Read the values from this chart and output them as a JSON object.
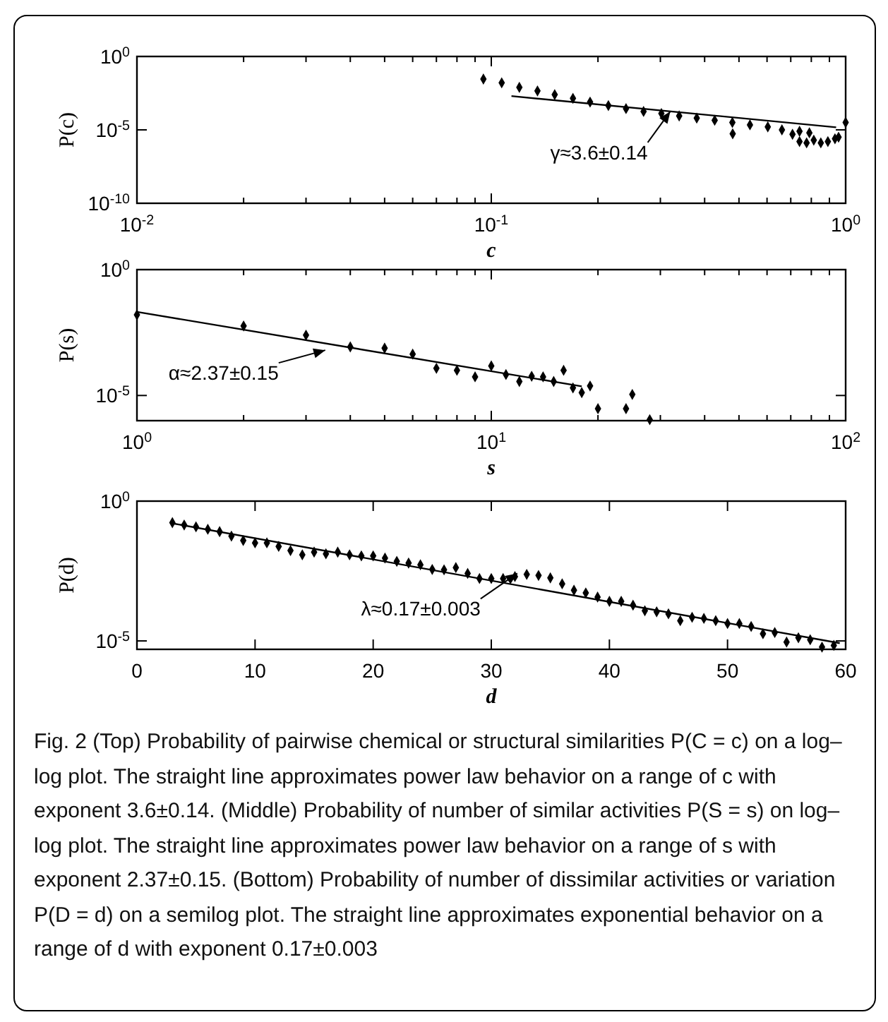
{
  "chart_data": [
    {
      "type": "scatter",
      "xlabel": "c",
      "ylabel": "P(c)",
      "log": "xy",
      "xlim": [
        0.01,
        1
      ],
      "ylim": [
        1e-10,
        1
      ],
      "xticks": [
        {
          "value": 0.01,
          "label": "10$^{-2}$"
        },
        {
          "value": 0.02,
          "label": null
        },
        {
          "value": 0.03,
          "label": null
        },
        {
          "value": 0.04,
          "label": null
        },
        {
          "value": 0.05,
          "label": null
        },
        {
          "value": 0.06,
          "label": null
        },
        {
          "value": 0.07,
          "label": null
        },
        {
          "value": 0.08,
          "label": null
        },
        {
          "value": 0.09,
          "label": null
        },
        {
          "value": 0.1,
          "label": "10$^{-1}$"
        },
        {
          "value": 0.2,
          "label": null
        },
        {
          "value": 0.3,
          "label": null
        },
        {
          "value": 0.4,
          "label": null
        },
        {
          "value": 0.5,
          "label": null
        },
        {
          "value": 0.6,
          "label": null
        },
        {
          "value": 0.7,
          "label": null
        },
        {
          "value": 0.8,
          "label": null
        },
        {
          "value": 0.9,
          "label": null
        },
        {
          "value": 1,
          "label": "10$^{0}$"
        }
      ],
      "yticks": [
        {
          "value": 1e-10,
          "label": "10$^{-10}$"
        },
        {
          "value": 1e-05,
          "label": "10$^{-5}$"
        },
        {
          "value": 1,
          "label": "10$^{0}$"
        }
      ],
      "series": [
        {
          "marker": "diamond",
          "color": "#000000",
          "x": [
            0.095,
            0.107,
            0.12,
            0.135,
            0.151,
            0.17,
            0.19,
            0.214,
            0.24,
            0.269,
            0.302,
            0.339,
            0.38,
            0.427,
            0.479,
            0.537,
            0.603,
            0.661,
            0.708,
            0.741,
            0.776,
            0.813,
            0.851,
            0.891,
            0.933,
            0.955,
            1.0,
            0.741,
            0.79,
            0.48
          ],
          "values": [
            0.029,
            0.016,
            0.0079,
            0.0045,
            0.0025,
            0.0014,
            0.00079,
            0.00045,
            0.00028,
            0.00018,
            0.00013,
            8.9e-05,
            6.3e-05,
            4.5e-05,
            3.2e-05,
            2.2e-05,
            1.6e-05,
            1e-05,
            5e-06,
            1.6e-06,
            1.3e-06,
            2e-06,
            1.3e-06,
            1.6e-06,
            2.5e-06,
            3.2e-06,
            3.2e-05,
            8e-06,
            6.3e-06,
            5.4e-06
          ]
        },
        {
          "type": "line",
          "color": "#000000",
          "x": [
            0.114,
            0.94
          ],
          "values": [
            0.002,
            1.5e-05
          ]
        }
      ],
      "annotations": [
        {
          "text": "γ≈3.6±0.14",
          "x": 0.32,
          "y": 0.00018
        }
      ]
    },
    {
      "type": "scatter",
      "xlabel": "s",
      "ylabel": "P(s)",
      "log": "xy",
      "xlim": [
        1,
        100
      ],
      "ylim": [
        1e-06,
        1
      ],
      "xticks": [
        {
          "value": 1,
          "label": "10$^{0}$"
        },
        {
          "value": 2,
          "label": null
        },
        {
          "value": 3,
          "label": null
        },
        {
          "value": 4,
          "label": null
        },
        {
          "value": 5,
          "label": null
        },
        {
          "value": 6,
          "label": null
        },
        {
          "value": 7,
          "label": null
        },
        {
          "value": 8,
          "label": null
        },
        {
          "value": 9,
          "label": null
        },
        {
          "value": 10,
          "label": "10$^{1}$"
        },
        {
          "value": 20,
          "label": null
        },
        {
          "value": 30,
          "label": null
        },
        {
          "value": 40,
          "label": null
        },
        {
          "value": 50,
          "label": null
        },
        {
          "value": 60,
          "label": null
        },
        {
          "value": 70,
          "label": null
        },
        {
          "value": 80,
          "label": null
        },
        {
          "value": 90,
          "label": null
        },
        {
          "value": 100,
          "label": "10$^{2}$"
        }
      ],
      "yticks": [
        {
          "value": 1e-05,
          "label": "10$^{-5}$"
        },
        {
          "value": 1,
          "label": "10$^{0}$"
        }
      ],
      "series": [
        {
          "marker": "diamond",
          "color": "#000000",
          "x": [
            1,
            2,
            3,
            4,
            5,
            6,
            7,
            8,
            9,
            10,
            11,
            12,
            13,
            14,
            15,
            16,
            17,
            18,
            19,
            20,
            24,
            25,
            28
          ],
          "values": [
            0.016,
            0.0058,
            0.0025,
            0.00085,
            0.00076,
            0.00044,
            0.00012,
            0.0001,
            5.5e-05,
            0.00015,
            6.8e-05,
            3.6e-05,
            5.8e-05,
            5.5e-05,
            3.6e-05,
            0.0001,
            2e-05,
            1.3e-05,
            2.4e-05,
            3e-06,
            3e-06,
            1.1e-05,
            1.1e-06
          ]
        },
        {
          "type": "line",
          "color": "#000000",
          "x": [
            1,
            18
          ],
          "values": [
            0.021,
            2.3e-05
          ]
        }
      ],
      "annotations": [
        {
          "text": "α≈2.37±0.15",
          "x": 3.4,
          "y": 0.00063
        }
      ]
    },
    {
      "type": "scatter",
      "xlabel": "d",
      "ylabel": "P(d)",
      "log": "y",
      "xlim": [
        0,
        60
      ],
      "ylim": [
        5e-06,
        1
      ],
      "xticks": [
        0,
        10,
        20,
        30,
        40,
        50,
        60
      ],
      "yticks": [
        {
          "value": 1e-05,
          "label": "10$^{-5}$"
        },
        {
          "value": 1,
          "label": "10$^{0}$"
        }
      ],
      "series": [
        {
          "marker": "diamond",
          "color": "#000000",
          "x": [
            3,
            4,
            5,
            6,
            7,
            8,
            9,
            10,
            11,
            12,
            13,
            14,
            15,
            16,
            17,
            18,
            19,
            20,
            21,
            22,
            23,
            24,
            25,
            26,
            27,
            28,
            29,
            30,
            31,
            32,
            33,
            34,
            35,
            36,
            37,
            38,
            39,
            40,
            41,
            42,
            43,
            44,
            45,
            46,
            47,
            48,
            49,
            50,
            51,
            52,
            53,
            54,
            55,
            56,
            57,
            58,
            59
          ],
          "values": [
            0.17,
            0.14,
            0.12,
            0.098,
            0.081,
            0.056,
            0.039,
            0.032,
            0.032,
            0.024,
            0.017,
            0.012,
            0.015,
            0.013,
            0.015,
            0.012,
            0.011,
            0.011,
            0.0092,
            0.007,
            0.0061,
            0.0053,
            0.0036,
            0.0035,
            0.0042,
            0.0026,
            0.0017,
            0.0017,
            0.0017,
            0.002,
            0.0024,
            0.0022,
            0.0018,
            0.0011,
            0.00065,
            0.00052,
            0.00037,
            0.00026,
            0.00026,
            0.00019,
            0.00012,
            0.00011,
            9.3e-05,
            5.3e-05,
            7e-05,
            6.4e-05,
            5.3e-05,
            4.2e-05,
            4.2e-05,
            3.3e-05,
            1.8e-05,
            2e-05,
            9.1e-06,
            1.3e-05,
            1.1e-05,
            6e-06,
            6.9e-06
          ]
        },
        {
          "type": "line",
          "color": "#000000",
          "x": [
            3,
            59.5
          ],
          "values": [
            0.16,
            8.3e-06
          ]
        }
      ],
      "annotations": [
        {
          "text": "λ≈0.17±0.003",
          "x": 32.2,
          "y": 0.0026
        },
        "Fig. 2  (Top) Probability of pairwise chemical or structural similarities P(C = c) on a log–log plot. The straight line approximates power law behavior on a range of c with exponent 3.6±0.14. (Middle) Probability of number of similar activities P(S = s) on log–log plot. The straight line approximates power law behavior on a range of s with exponent 2.37±0.15. (Bottom) Probability of number of dissimilar activities or variation P(D = d) on a semilog plot. The straight line approximates exponential behavior on a range of d with exponent 0.17±0.003"
      ]
    }
  ]
}
